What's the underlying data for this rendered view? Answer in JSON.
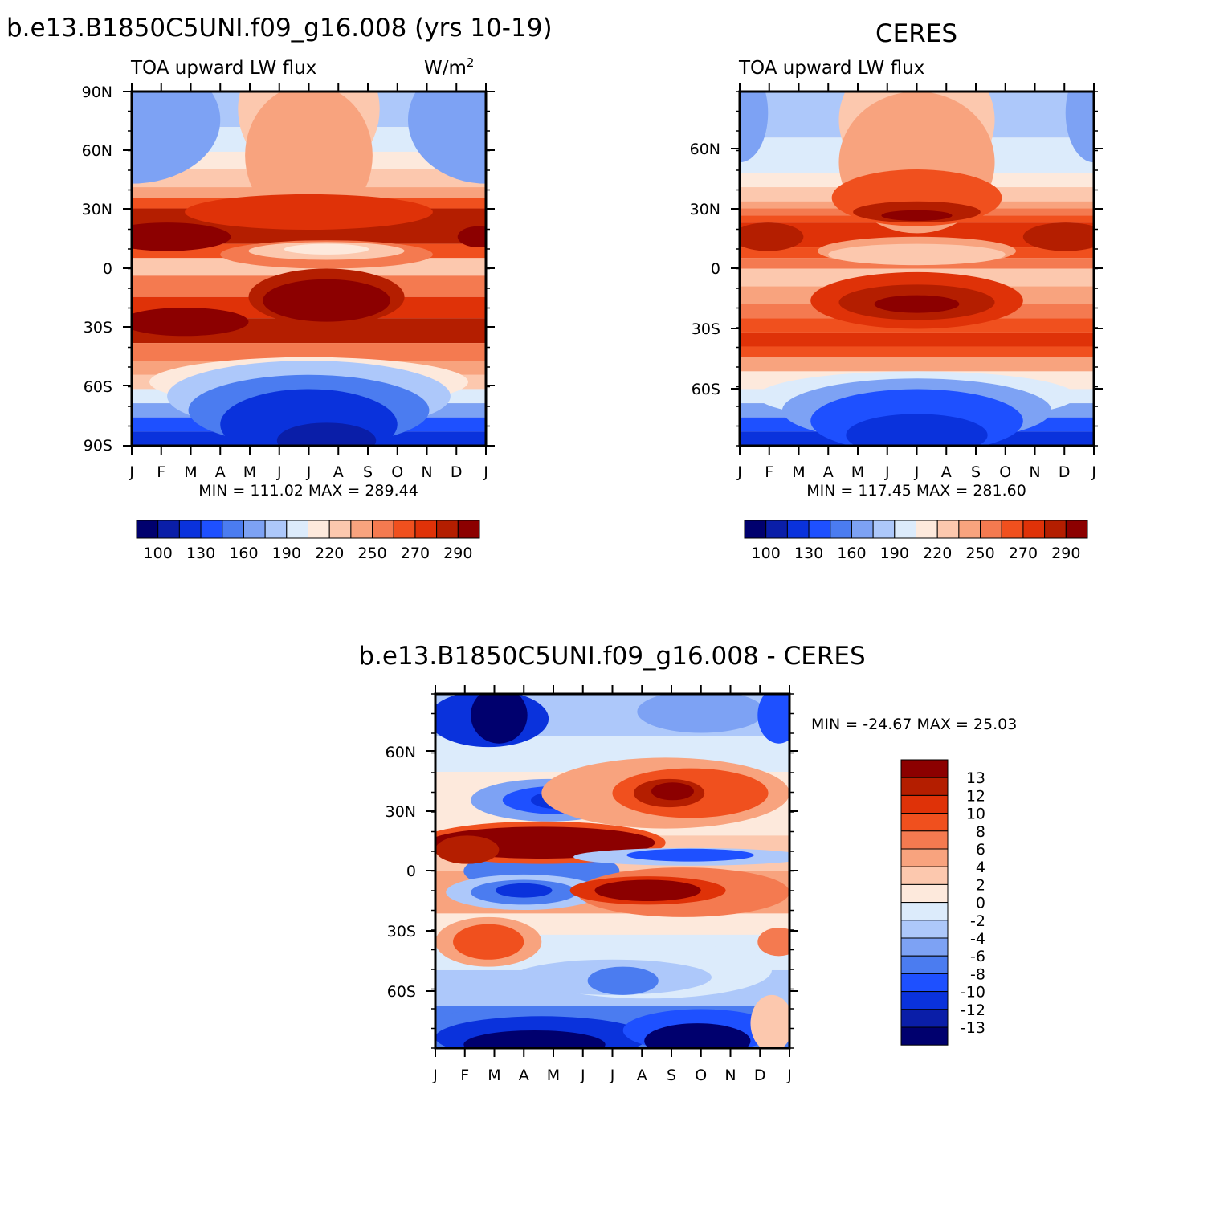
{
  "palette_main": [
    "#00006e",
    "#0a1ea8",
    "#0a32dc",
    "#1e50ff",
    "#4b7cf0",
    "#7da2f4",
    "#adc8fa",
    "#dcebfb",
    "#fde9dc",
    "#fcc8ae",
    "#f8a37e",
    "#f47a50",
    "#f0501e",
    "#df3208",
    "#b41e00",
    "#8c0000"
  ],
  "palette_diff": [
    "#00006e",
    "#0a1ea8",
    "#0a32dc",
    "#1e50ff",
    "#4b7cf0",
    "#7da2f4",
    "#adc8fa",
    "#dcebfb",
    "#fde9dc",
    "#fcc8ae",
    "#f8a37e",
    "#f47a50",
    "#f0501e",
    "#df3208",
    "#b41e00",
    "#8c0000"
  ],
  "months": [
    "J",
    "F",
    "M",
    "A",
    "M",
    "J",
    "J",
    "A",
    "S",
    "O",
    "N",
    "D",
    "J"
  ],
  "panels": {
    "model": {
      "case_title": "b.e13.B1850C5UNI.f09_g16.008 (yrs 10-19)",
      "subtitle": "TOA upward LW flux",
      "units_base": "W/m",
      "units_exp": "2",
      "stats": "MIN = 111.02 MAX = 289.44"
    },
    "obs": {
      "title": "CERES",
      "subtitle": "TOA upward LW flux",
      "stats": "MIN = 117.45 MAX = 281.60"
    },
    "diff": {
      "title": "b.e13.B1850C5UNI.f09_g16.008 - CERES",
      "stats": "MIN = -24.67 MAX =  25.03"
    }
  },
  "chart_data": [
    {
      "type": "heatmap",
      "title": "b.e13.B1850C5UNI.f09_g16.008 (yrs 10-19)",
      "subtitle": "TOA upward LW flux",
      "units": "W/m2",
      "x": [
        "J",
        "F",
        "M",
        "A",
        "M",
        "J",
        "J",
        "A",
        "S",
        "O",
        "N",
        "D",
        "J"
      ],
      "ylim": [
        -90,
        90
      ],
      "y_ticks": [
        "90N",
        "60N",
        "30N",
        "0",
        "30S",
        "60S",
        "90S"
      ],
      "colorbar_labels": [
        "100",
        "130",
        "160",
        "190",
        "220",
        "250",
        "270",
        "290"
      ],
      "min": 111.02,
      "max": 289.44
    },
    {
      "type": "heatmap",
      "title": "CERES",
      "subtitle": "TOA upward LW flux",
      "units": "W/m2",
      "x": [
        "J",
        "F",
        "M",
        "A",
        "M",
        "J",
        "J",
        "A",
        "S",
        "O",
        "N",
        "D",
        "J"
      ],
      "ylim": [
        -90,
        90
      ],
      "y_ticks": [
        "60N",
        "30N",
        "0",
        "30S",
        "60S"
      ],
      "colorbar_labels": [
        "100",
        "130",
        "160",
        "190",
        "220",
        "250",
        "270",
        "290"
      ],
      "min": 117.45,
      "max": 281.6
    },
    {
      "type": "heatmap",
      "title": "b.e13.B1850C5UNI.f09_g16.008 - CERES",
      "x": [
        "J",
        "F",
        "M",
        "A",
        "M",
        "J",
        "J",
        "A",
        "S",
        "O",
        "N",
        "D",
        "J"
      ],
      "ylim": [
        -90,
        90
      ],
      "y_ticks": [
        "60N",
        "30N",
        "0",
        "30S",
        "60S"
      ],
      "colorbar_labels": [
        "13",
        "12",
        "10",
        "8",
        "6",
        "4",
        "2",
        "0",
        "-2",
        "-4",
        "-6",
        "-8",
        "-10",
        "-12",
        "-13"
      ],
      "min": -24.67,
      "max": 25.03
    }
  ]
}
